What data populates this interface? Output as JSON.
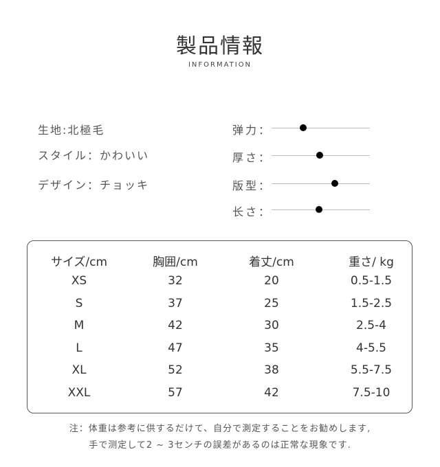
{
  "header": {
    "title": "製品情報",
    "subtitle": "INFORMATION"
  },
  "attributes": [
    "生地:北極毛",
    "スタイル：かわいい",
    "デザイン：チョッキ"
  ],
  "sliders": [
    {
      "label": "弹力：",
      "value": 0.32
    },
    {
      "label": "厚さ：",
      "value": 0.49
    },
    {
      "label": "版型：",
      "value": 0.64
    },
    {
      "label": "长さ：",
      "value": 0.48
    }
  ],
  "table": {
    "headers": [
      "サイズ/cm",
      "胸囲/cm",
      "着丈/cm",
      "重さ/ kg"
    ],
    "rows": [
      [
        "XS",
        "32",
        "20",
        "0.5-1.5"
      ],
      [
        "S",
        "37",
        "25",
        "1.5-2.5"
      ],
      [
        "M",
        "42",
        "30",
        "2.5-4"
      ],
      [
        "L",
        "47",
        "35",
        "4-5.5"
      ],
      [
        "XL",
        "52",
        "38",
        "5.5-7.5"
      ],
      [
        "XXL",
        "57",
        "42",
        "7.5-10"
      ]
    ]
  },
  "note": [
    "注：体重は参考に供するだけて、自分で測定することをお勧めします,",
    "手で测定して2 ~ 3センチの誤差があるのは正常な現象です."
  ]
}
